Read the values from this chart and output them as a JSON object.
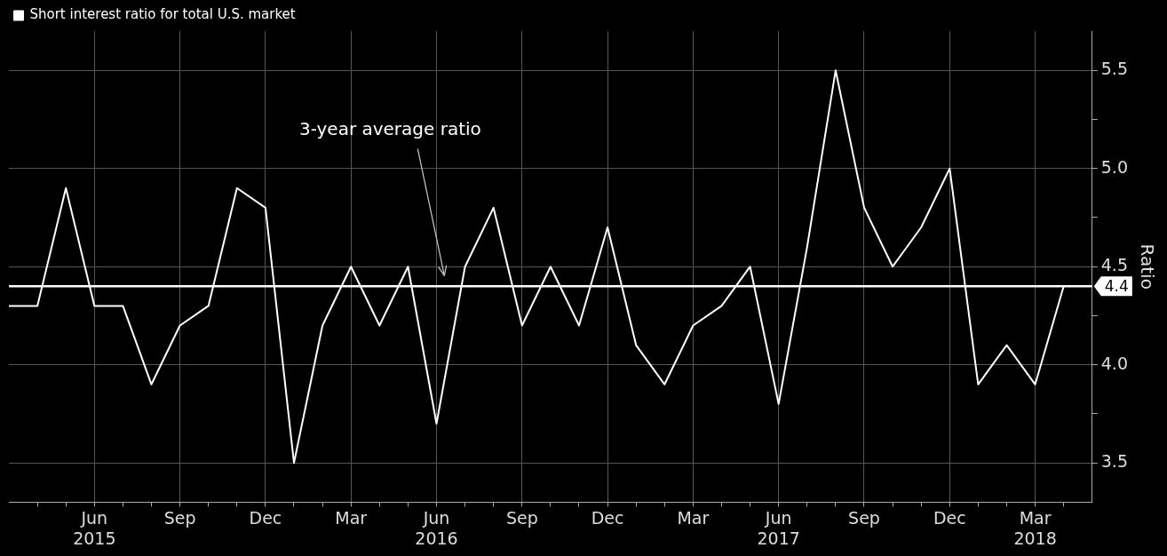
{
  "chart_data": {
    "type": "line",
    "ylabel": "Ratio",
    "legend": "top left",
    "grid": true,
    "line_style": "solid",
    "marker": "none",
    "x": [
      "2015-03",
      "2015-04",
      "2015-05",
      "2015-06",
      "2015-07",
      "2015-08",
      "2015-09",
      "2015-10",
      "2015-11",
      "2015-12",
      "2016-01",
      "2016-02",
      "2016-03",
      "2016-04",
      "2016-05",
      "2016-06",
      "2016-07",
      "2016-08",
      "2016-09",
      "2016-10",
      "2016-11",
      "2016-12",
      "2017-01",
      "2017-02",
      "2017-03",
      "2017-04",
      "2017-05",
      "2017-06",
      "2017-07",
      "2017-08",
      "2017-09",
      "2017-10",
      "2017-11",
      "2017-12",
      "2018-01",
      "2018-02",
      "2018-03",
      "2018-04"
    ],
    "series": [
      {
        "name": "Short interest ratio for total U.S. market",
        "color": "#ffffff",
        "values": [
          4.3,
          4.3,
          4.9,
          4.3,
          4.3,
          3.9,
          4.2,
          4.3,
          4.9,
          4.8,
          3.5,
          4.2,
          4.5,
          4.2,
          4.5,
          3.7,
          4.5,
          4.8,
          4.2,
          4.5,
          4.2,
          4.7,
          4.1,
          3.9,
          4.2,
          4.3,
          4.5,
          3.8,
          4.6,
          5.5,
          4.8,
          4.5,
          4.7,
          5.0,
          3.9,
          4.1,
          3.9,
          4.4
        ]
      }
    ],
    "xlim": [
      "2015-03",
      "2018-05"
    ],
    "xticks": [
      {
        "value": "2015-04",
        "label": null
      },
      {
        "value": "2015-05",
        "label": null
      },
      {
        "value": "2015-06",
        "label": "Jun\n2015"
      },
      {
        "value": "2015-07",
        "label": null
      },
      {
        "value": "2015-08",
        "label": null
      },
      {
        "value": "2015-09",
        "label": "Sep"
      },
      {
        "value": "2015-10",
        "label": null
      },
      {
        "value": "2015-11",
        "label": null
      },
      {
        "value": "2015-12",
        "label": "Dec"
      },
      {
        "value": "2016-01",
        "label": null
      },
      {
        "value": "2016-02",
        "label": null
      },
      {
        "value": "2016-03",
        "label": "Mar"
      },
      {
        "value": "2016-04",
        "label": null
      },
      {
        "value": "2016-05",
        "label": null
      },
      {
        "value": "2016-06",
        "label": "Jun\n2016"
      },
      {
        "value": "2016-07",
        "label": null
      },
      {
        "value": "2016-08",
        "label": null
      },
      {
        "value": "2016-09",
        "label": "Sep"
      },
      {
        "value": "2016-10",
        "label": null
      },
      {
        "value": "2016-11",
        "label": null
      },
      {
        "value": "2016-12",
        "label": "Dec"
      },
      {
        "value": "2017-01",
        "label": null
      },
      {
        "value": "2017-02",
        "label": null
      },
      {
        "value": "2017-03",
        "label": "Mar"
      },
      {
        "value": "2017-04",
        "label": null
      },
      {
        "value": "2017-05",
        "label": null
      },
      {
        "value": "2017-06",
        "label": "Jun\n2017"
      },
      {
        "value": "2017-07",
        "label": null
      },
      {
        "value": "2017-08",
        "label": null
      },
      {
        "value": "2017-09",
        "label": "Sep"
      },
      {
        "value": "2017-10",
        "label": null
      },
      {
        "value": "2017-11",
        "label": null
      },
      {
        "value": "2017-12",
        "label": "Dec"
      },
      {
        "value": "2018-01",
        "label": null
      },
      {
        "value": "2018-02",
        "label": null
      },
      {
        "value": "2018-03",
        "label": "Mar\n2018"
      },
      {
        "value": "2018-04",
        "label": null
      }
    ],
    "ylim": [
      3.3,
      5.7
    ],
    "yticks": [
      3.5,
      {
        "value": 3.75,
        "label": null
      },
      {
        "value": 4,
        "label": "4.0"
      },
      {
        "value": 4.25,
        "label": null
      },
      4.5,
      {
        "value": 4.75,
        "label": null
      },
      {
        "value": 5,
        "label": "5.0"
      },
      {
        "value": 5.25,
        "label": null
      },
      5.5
    ],
    "ref_lines": [
      {
        "axis": "y",
        "value": 4.4,
        "label": "4.4",
        "color": "#ffffff"
      }
    ],
    "annotations": [
      "3-year average ratio"
    ]
  }
}
